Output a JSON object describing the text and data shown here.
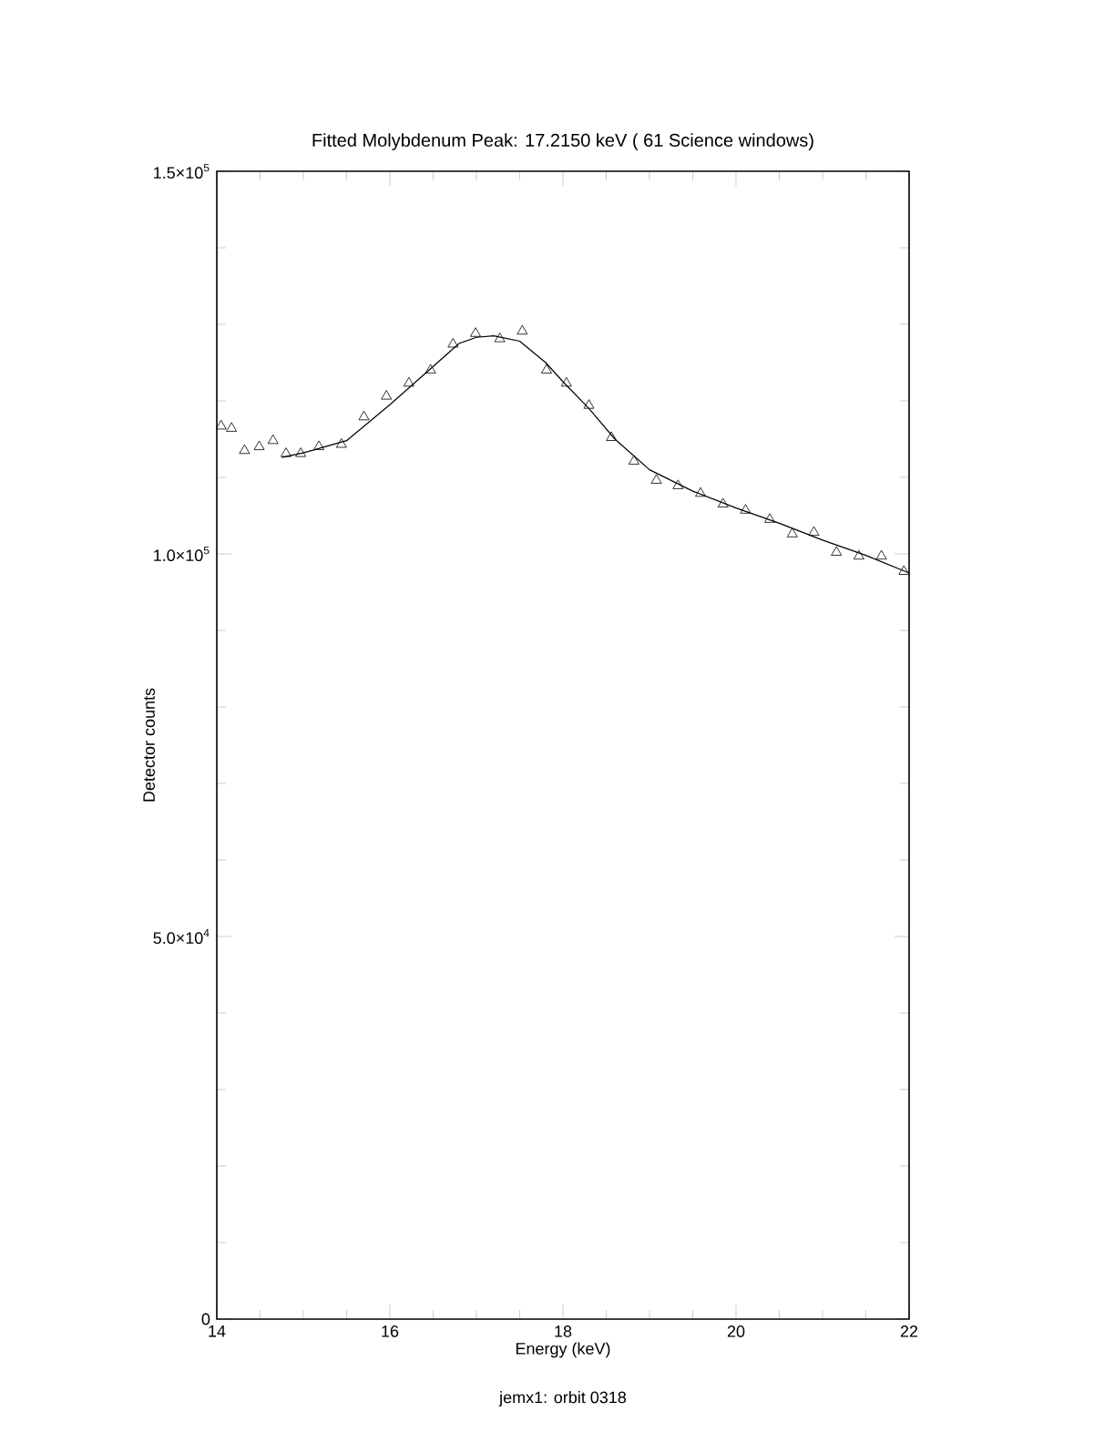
{
  "chart_data": {
    "type": "scatter",
    "title": "Fitted Molybdenum Peak:      17.2150 keV (     61 Science windows)",
    "xlabel": "Energy (keV)",
    "ylabel": "Detector counts",
    "annotations": [
      "jemx1: orbit 0318"
    ],
    "xlim": [
      14,
      22
    ],
    "ylim": [
      0,
      150000
    ],
    "xticks": [
      14,
      16,
      18,
      20,
      22
    ],
    "yticks": [
      0,
      {
        "value": 50000,
        "label": "5.0×10$^{4}$"
      },
      {
        "value": 100000,
        "label": "1.0×10$^{5}$"
      },
      {
        "value": 150000,
        "label": "1.5×10$^{5}$"
      }
    ],
    "series": [
      {
        "marker": "triangle",
        "color": "#000000",
        "x": [
          14.05,
          14.17,
          14.32,
          14.49,
          14.65,
          14.8,
          14.97,
          15.18,
          15.44,
          15.7,
          15.96,
          16.22,
          16.47,
          16.73,
          16.99,
          17.27,
          17.53,
          17.81,
          18.04,
          18.3,
          18.56,
          18.82,
          19.08,
          19.33,
          19.59,
          19.85,
          20.11,
          20.39,
          20.65,
          20.9,
          21.16,
          21.42,
          21.68,
          21.94
        ],
        "values": [
          116700,
          116400,
          113500,
          114000,
          114800,
          113100,
          113100,
          114000,
          114300,
          117900,
          120600,
          122300,
          124000,
          127400,
          128800,
          128100,
          129100,
          124000,
          122300,
          119400,
          115200,
          112100,
          109600,
          108900,
          107900,
          106500,
          105700,
          104500,
          102600,
          102800,
          100200,
          99700,
          99700,
          97700
        ]
      },
      {
        "type": "line",
        "marker": "none",
        "color": "#000000",
        "x": [
          14.75,
          15.0,
          15.5,
          16.0,
          16.5,
          16.8,
          17.0,
          17.2,
          17.5,
          17.8,
          18.0,
          18.3,
          18.6,
          19.0,
          19.5,
          20.0,
          20.5,
          21.0,
          21.5,
          22.0
        ],
        "values": [
          112600,
          113200,
          114800,
          119500,
          124500,
          127500,
          128300,
          128500,
          127800,
          125000,
          122500,
          119000,
          115000,
          111000,
          108200,
          106000,
          104000,
          101800,
          99800,
          97500
        ]
      }
    ]
  }
}
